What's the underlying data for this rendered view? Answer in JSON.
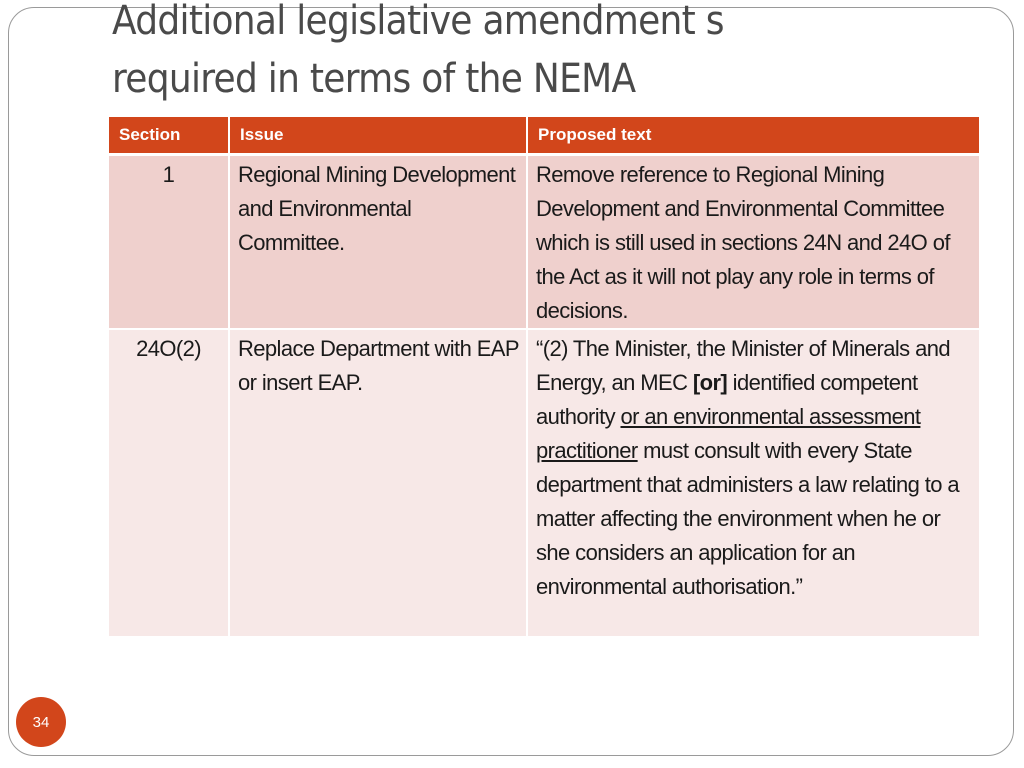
{
  "slide": {
    "title_line1": "Additional legislative amendment s",
    "title_line2": "required in terms of the NEMA",
    "page_number": "34"
  },
  "table": {
    "headers": [
      "Section",
      "Issue",
      "Proposed text"
    ],
    "rows": [
      {
        "section": "1",
        "issue": "Regional Mining Development and Environmental Committee.",
        "proposed": {
          "text": "Remove reference to Regional Mining Development and Environmental Committee which is still used in sections 24N and 24O of the Act as it will not play any role in terms of decisions."
        }
      },
      {
        "section": "24O(2)",
        "issue": "Replace Department with EAP or insert EAP.",
        "proposed": {
          "part1": "“(2) The Minister, the Minister of Minerals and Energy, an MEC ",
          "bold": "[or]",
          "part2": " identified competent authority ",
          "underlined": "or an environmental assessment practitioner",
          "part3": " must consult with every State department that administers a law relating to a matter affecting the environment when he or she considers an application for an environmental authorisation.”"
        }
      }
    ]
  },
  "colors": {
    "accent": "#d2461b",
    "row_odd": "#efd0cd",
    "row_even": "#f7e8e7",
    "title": "#4a4a4a"
  }
}
